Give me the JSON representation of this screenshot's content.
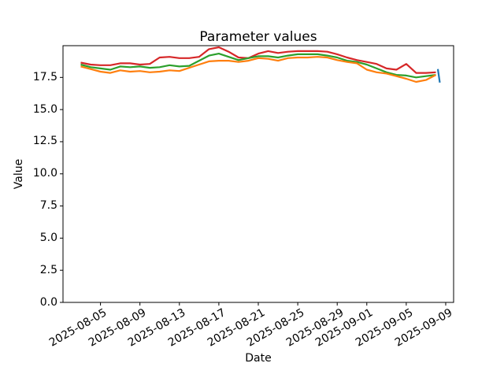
{
  "chart_data": {
    "type": "line",
    "title": "Parameter values",
    "xlabel": "Date",
    "ylabel": "Value",
    "grid": false,
    "legend": "none",
    "background_color": "#ffffff",
    "text_color": "#000000",
    "spine_color": "#000000",
    "start_date": "2025-08-03",
    "x_unit": "days since 2025-08-03, daily cadence",
    "xlim": [
      -1.8,
      37.8
    ],
    "ylim": [
      0,
      19.97
    ],
    "x_ticks": [
      {
        "day": 2,
        "label": "2025-08-05"
      },
      {
        "day": 6,
        "label": "2025-08-09"
      },
      {
        "day": 10,
        "label": "2025-08-13"
      },
      {
        "day": 14,
        "label": "2025-08-17"
      },
      {
        "day": 18,
        "label": "2025-08-21"
      },
      {
        "day": 22,
        "label": "2025-08-25"
      },
      {
        "day": 26,
        "label": "2025-08-29"
      },
      {
        "day": 29,
        "label": "2025-09-01"
      },
      {
        "day": 33,
        "label": "2025-09-05"
      },
      {
        "day": 37,
        "label": "2025-09-09"
      }
    ],
    "y_ticks": [
      {
        "value": 0.0,
        "label": "0.0"
      },
      {
        "value": 2.5,
        "label": "2.5"
      },
      {
        "value": 5.0,
        "label": "5.0"
      },
      {
        "value": 7.5,
        "label": "7.5"
      },
      {
        "value": 10.0,
        "label": "10.0"
      },
      {
        "value": 12.5,
        "label": "12.5"
      },
      {
        "value": 15.0,
        "label": "15.0"
      },
      {
        "value": 17.5,
        "label": "17.5"
      }
    ],
    "series": [
      {
        "name": "red",
        "color": "#d62728",
        "x": [
          0,
          1,
          2,
          3,
          4,
          5,
          6,
          7,
          8,
          9,
          10,
          11,
          12,
          13,
          14,
          15,
          16,
          17,
          18,
          19,
          20,
          21,
          22,
          23,
          24,
          25,
          26,
          27,
          28,
          29,
          30,
          31,
          32,
          33,
          34,
          35,
          36
        ],
        "values": [
          18.65,
          18.5,
          18.45,
          18.45,
          18.6,
          18.6,
          18.5,
          18.55,
          19.05,
          19.1,
          19.0,
          19.0,
          19.1,
          19.7,
          19.85,
          19.5,
          19.05,
          19.0,
          19.35,
          19.55,
          19.4,
          19.5,
          19.55,
          19.55,
          19.55,
          19.5,
          19.3,
          19.05,
          18.85,
          18.7,
          18.55,
          18.2,
          18.1,
          18.55,
          17.85,
          17.85,
          17.9
        ]
      },
      {
        "name": "green",
        "color": "#2ca02c",
        "x": [
          0,
          1,
          2,
          3,
          4,
          5,
          6,
          7,
          8,
          9,
          10,
          11,
          12,
          13,
          14,
          15,
          16,
          17,
          18,
          19,
          20,
          21,
          22,
          23,
          24,
          25,
          26,
          27,
          28,
          29,
          30,
          31,
          32,
          33,
          34,
          35,
          36
        ],
        "values": [
          18.5,
          18.3,
          18.2,
          18.1,
          18.35,
          18.3,
          18.35,
          18.25,
          18.3,
          18.45,
          18.35,
          18.4,
          18.8,
          19.2,
          19.35,
          19.1,
          18.85,
          19.0,
          19.15,
          19.15,
          19.05,
          19.2,
          19.3,
          19.3,
          19.3,
          19.2,
          19.05,
          18.8,
          18.7,
          18.5,
          18.2,
          17.9,
          17.7,
          17.65,
          17.5,
          17.6,
          17.7
        ]
      },
      {
        "name": "orange",
        "color": "#ff7f0e",
        "x": [
          0,
          1,
          2,
          3,
          4,
          5,
          6,
          7,
          8,
          9,
          10,
          11,
          12,
          13,
          14,
          15,
          16,
          17,
          18,
          19,
          20,
          21,
          22,
          23,
          24,
          25,
          26,
          27,
          28,
          29,
          30,
          31,
          32,
          33,
          34,
          35,
          36
        ],
        "values": [
          18.35,
          18.15,
          17.95,
          17.85,
          18.05,
          17.95,
          18.0,
          17.9,
          17.95,
          18.05,
          18.0,
          18.25,
          18.5,
          18.75,
          18.8,
          18.8,
          18.7,
          18.8,
          19.0,
          18.95,
          18.8,
          19.0,
          19.05,
          19.05,
          19.1,
          19.05,
          18.85,
          18.7,
          18.6,
          18.1,
          17.9,
          17.8,
          17.6,
          17.4,
          17.15,
          17.3,
          17.7
        ]
      },
      {
        "name": "blue",
        "color": "#1f77b4",
        "x": [
          36.2,
          36.4
        ],
        "values": [
          18.15,
          17.1
        ]
      }
    ]
  }
}
